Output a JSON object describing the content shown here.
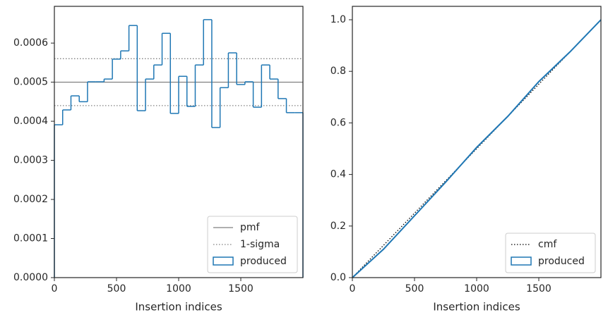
{
  "chart_data": [
    {
      "type": "histogram",
      "xlabel": "Insertion indices",
      "name": "produced",
      "color": "#1f77b4",
      "bins": [
        0,
        66.67,
        133.33,
        200,
        266.67,
        333.33,
        400,
        466.67,
        533.33,
        600,
        666.67,
        733.33,
        800,
        866.67,
        933.33,
        1000,
        1066.67,
        1133.33,
        1200,
        1266.67,
        1333.33,
        1400,
        1466.67,
        1533.33,
        1600,
        1666.67,
        1733.33,
        1800,
        1866.67,
        1933.33,
        2000
      ],
      "values": [
        0.000391,
        0.000429,
        0.000465,
        0.00045,
        0.000501,
        0.000501,
        0.000508,
        0.000559,
        0.00058,
        0.000645,
        0.000427,
        0.000508,
        0.000544,
        0.000625,
        0.00042,
        0.000515,
        0.000438,
        0.000544,
        0.00066,
        0.000384,
        0.000486,
        0.000575,
        0.000494,
        0.000501,
        0.000436,
        0.000544,
        0.000508,
        0.000458,
        0.000422,
        0.000422
      ],
      "lines": [
        {
          "name": "pmf",
          "color": "#808080",
          "style": "solid",
          "values": [
            0.0005
          ]
        },
        {
          "name": "1-sigma",
          "color": "#808080",
          "style": "dotted",
          "values": [
            0.00044,
            0.00056
          ]
        }
      ],
      "xlim": [
        0,
        2000
      ],
      "xticks": [
        0,
        500,
        1000,
        1500
      ],
      "ylim": [
        0,
        0.000694
      ],
      "yticks": [
        {
          "value": 0,
          "label": "0.0000"
        },
        {
          "value": 0.0001,
          "label": "0.0001"
        },
        {
          "value": 0.0002,
          "label": "0.0002"
        },
        {
          "value": 0.0003,
          "label": "0.0003"
        },
        {
          "value": 0.0004,
          "label": "0.0004"
        },
        {
          "value": 0.0005,
          "label": "0.0005"
        },
        {
          "value": 0.0006,
          "label": "0.0006"
        }
      ],
      "legend": "lower right"
    },
    {
      "type": "line",
      "xlabel": "Insertion indices",
      "series": [
        {
          "name": "cmf",
          "color": "#000000",
          "style": "dotted",
          "x": [
            0,
            2000
          ],
          "values": [
            0,
            1
          ]
        },
        {
          "name": "produced",
          "color": "#1f77b4",
          "style": "step",
          "x": [
            0,
            250,
            500,
            750,
            1000,
            1250,
            1500,
            1750,
            2000
          ],
          "values": [
            0,
            0.11,
            0.24,
            0.37,
            0.505,
            0.625,
            0.76,
            0.875,
            1
          ]
        }
      ],
      "xlim": [
        0,
        2000
      ],
      "xticks": [
        0,
        500,
        1000,
        1500
      ],
      "ylim": [
        0,
        1.052
      ],
      "yticks": [
        {
          "value": 0,
          "label": "0.0"
        },
        0.2,
        0.4,
        0.6,
        0.8,
        {
          "value": 1,
          "label": "1.0"
        }
      ],
      "legend": "lower right"
    }
  ]
}
